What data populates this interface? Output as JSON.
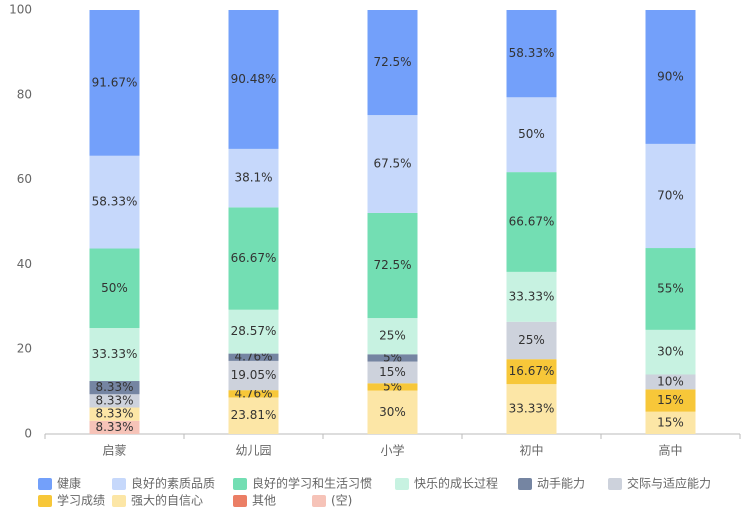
{
  "chart_data": {
    "type": "bar",
    "stack": "percent",
    "categories": [
      "启蒙",
      "幼儿园",
      "小学",
      "初中",
      "高中"
    ],
    "ylim": [
      0,
      100
    ],
    "yticks": [
      0,
      20,
      40,
      60,
      80,
      100
    ],
    "series": [
      {
        "name": "健康",
        "color": "#73a0fa",
        "values": [
          91.67,
          90.48,
          72.5,
          58.33,
          90
        ],
        "value_labels": [
          "91.67%",
          "90.48%",
          "72.5%",
          "58.33%",
          "90%"
        ]
      },
      {
        "name": "良好的素质品质",
        "color": "#c6d8fb",
        "values": [
          58.33,
          38.1,
          67.5,
          50,
          70
        ],
        "value_labels": [
          "58.33%",
          "38.1%",
          "67.5%",
          "50%",
          "70%"
        ]
      },
      {
        "name": "良好的学习和生活习惯",
        "color": "#73deb3",
        "values": [
          50,
          66.67,
          72.5,
          66.67,
          55
        ],
        "value_labels": [
          "50%",
          "66.67%",
          "72.5%",
          "66.67%",
          "55%"
        ]
      },
      {
        "name": "快乐的成长过程",
        "color": "#c7f2e1",
        "values": [
          33.33,
          28.57,
          25,
          33.33,
          30
        ],
        "value_labels": [
          "33.33%",
          "28.57%",
          "25%",
          "33.33%",
          "30%"
        ]
      },
      {
        "name": "动手能力",
        "color": "#7585a2",
        "values": [
          8.33,
          4.76,
          5,
          null,
          null
        ],
        "value_labels": [
          "8.33%",
          "4.76%",
          "5%",
          null,
          null
        ]
      },
      {
        "name": "交际与适应能力",
        "color": "#cdd2dc",
        "values": [
          8.33,
          19.05,
          15,
          25,
          10
        ],
        "value_labels": [
          "8.33%",
          "19.05%",
          "15%",
          "25%",
          "10%"
        ]
      },
      {
        "name": "学习成绩",
        "color": "#f7c739",
        "values": [
          null,
          4.76,
          5,
          16.67,
          15
        ],
        "value_labels": [
          null,
          "4.76%",
          "5%",
          "16.67%",
          "15%"
        ]
      },
      {
        "name": "强大的自信心",
        "color": "#fce6a6",
        "values": [
          8.33,
          23.81,
          30,
          33.33,
          15
        ],
        "value_labels": [
          "8.33%",
          "23.81%",
          "30%",
          "33.33%",
          "15%"
        ]
      },
      {
        "name": "其他",
        "color": "#eb7e65",
        "values": [
          null,
          null,
          null,
          null,
          null
        ],
        "value_labels": [
          null,
          null,
          null,
          null,
          null
        ]
      },
      {
        "name": "(空)",
        "color": "#f6c3b8",
        "values": [
          8.33,
          null,
          null,
          null,
          null
        ],
        "value_labels": [
          "8.33%",
          null,
          null,
          null,
          null
        ]
      }
    ]
  }
}
